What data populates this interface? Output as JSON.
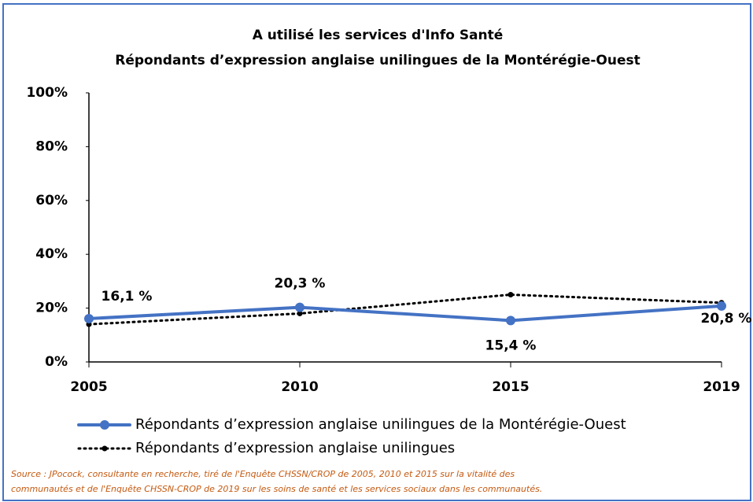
{
  "chart_data": {
    "type": "line",
    "title": "A utilisé les services d'Info Santé",
    "subtitle": "Répondants d’expression anglaise unilingues de la Montérégie-Ouest",
    "categories": [
      "2005",
      "2010",
      "2015",
      "2019"
    ],
    "series": [
      {
        "name": "Répondants d’expression anglaise unilingues de la Montérégie-Ouest",
        "color": "#4472c4",
        "style": "solid",
        "values": [
          16.1,
          20.3,
          15.4,
          20.8
        ],
        "value_labels": [
          "16,1 %",
          "20,3 %",
          "15,4 %",
          "20,8 %"
        ]
      },
      {
        "name": "Répondants d’expression anglaise unilingues",
        "color": "#000000",
        "style": "dotted",
        "values": [
          14,
          18,
          25,
          22
        ]
      }
    ],
    "ylim": [
      0,
      100
    ],
    "yticks": [
      {
        "value": 0,
        "label": "0%"
      },
      {
        "value": 20,
        "label": "20%"
      },
      {
        "value": 40,
        "label": "40%"
      },
      {
        "value": 60,
        "label": "60%"
      },
      {
        "value": 80,
        "label": "80%"
      },
      {
        "value": 100,
        "label": "100%"
      }
    ],
    "grid": false,
    "legend": "bottom",
    "source": [
      "Source : JPocock, consultante en recherche, tiré de l'Enquête CHSSN/CROP de 2005, 2010 et 2015 sur la vitalité des",
      "communautés et de l'Enquête CHSSN-CROP de 2019 sur les soins de santé et les services sociaux dans les communautés."
    ]
  }
}
